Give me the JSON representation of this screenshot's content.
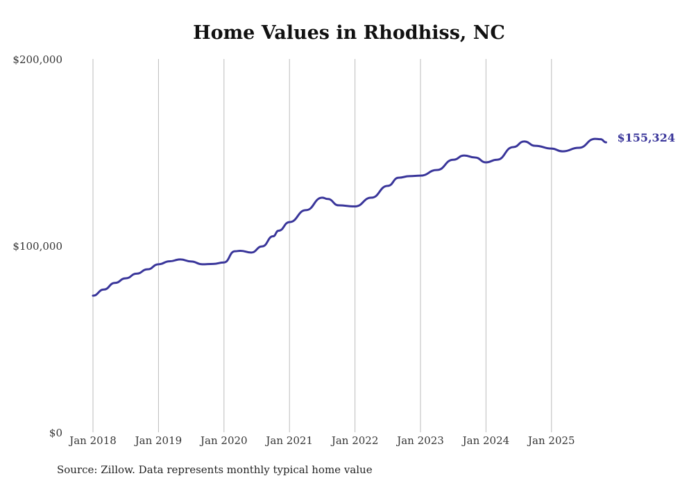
{
  "chart_data": {
    "type": "line",
    "title": "Home Values in Rhodhiss, NC",
    "xlabel": "",
    "ylabel": "",
    "ylim": [
      0,
      200000
    ],
    "yticks": [
      0,
      100000,
      200000
    ],
    "ytick_labels": [
      "$0",
      "$100,000",
      "$200,000"
    ],
    "xticks": [
      2018,
      2019,
      2020,
      2021,
      2022,
      2023,
      2024,
      2025
    ],
    "xtick_labels": [
      "Jan 2018",
      "Jan 2019",
      "Jan 2020",
      "Jan 2021",
      "Jan 2022",
      "Jan 2023",
      "Jan 2024",
      "Jan 2025"
    ],
    "grid": "vertical",
    "line_color": "#39359a",
    "end_label": "$155,324",
    "series": [
      {
        "name": "Typical home value",
        "x": [
          "2018-01",
          "2018-03",
          "2018-05",
          "2018-07",
          "2018-09",
          "2018-11",
          "2019-01",
          "2019-03",
          "2019-05",
          "2019-07",
          "2019-09",
          "2019-11",
          "2020-01",
          "2020-03",
          "2020-04",
          "2020-06",
          "2020-08",
          "2020-10",
          "2020-11",
          "2021-01",
          "2021-04",
          "2021-07",
          "2021-08",
          "2021-10",
          "2022-01",
          "2022-04",
          "2022-07",
          "2022-09",
          "2022-11",
          "2023-01",
          "2023-04",
          "2023-07",
          "2023-09",
          "2023-11",
          "2024-01",
          "2024-03",
          "2024-06",
          "2024-08",
          "2024-10",
          "2025-01",
          "2025-03",
          "2025-06",
          "2025-09",
          "2025-10",
          "2025-11"
        ],
        "values": [
          73200,
          76500,
          80000,
          82500,
          85000,
          87300,
          90000,
          91600,
          92600,
          91500,
          90000,
          90200,
          91000,
          97000,
          97200,
          96300,
          99600,
          105000,
          108000,
          112600,
          119000,
          125700,
          125000,
          121600,
          121000,
          125700,
          132000,
          136400,
          137200,
          137500,
          140500,
          146000,
          148300,
          147200,
          144600,
          146000,
          152800,
          155800,
          153500,
          152000,
          150500,
          152400,
          157200,
          157000,
          155324
        ]
      }
    ]
  },
  "source": "Source: Zillow. Data represents monthly typical home value"
}
